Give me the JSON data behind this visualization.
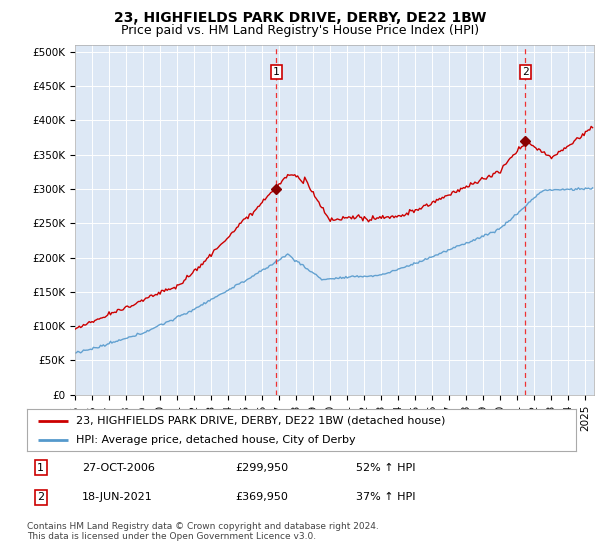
{
  "title": "23, HIGHFIELDS PARK DRIVE, DERBY, DE22 1BW",
  "subtitle": "Price paid vs. HM Land Registry's House Price Index (HPI)",
  "ylabel_ticks": [
    "£0",
    "£50K",
    "£100K",
    "£150K",
    "£200K",
    "£250K",
    "£300K",
    "£350K",
    "£400K",
    "£450K",
    "£500K"
  ],
  "ytick_values": [
    0,
    50000,
    100000,
    150000,
    200000,
    250000,
    300000,
    350000,
    400000,
    450000,
    500000
  ],
  "ylim": [
    0,
    510000
  ],
  "xlim_start": 1995.0,
  "xlim_end": 2025.5,
  "sale1_date": 2006.82,
  "sale1_price": 299950,
  "sale1_label": "1",
  "sale2_date": 2021.46,
  "sale2_price": 369950,
  "sale2_label": "2",
  "property_color": "#cc0000",
  "hpi_color": "#5599cc",
  "sale_marker_color": "#880000",
  "vline_color": "#ee3333",
  "grid_color": "#cccccc",
  "chart_bg_color": "#dde8f5",
  "background_color": "#ffffff",
  "legend_entry1": "23, HIGHFIELDS PARK DRIVE, DERBY, DE22 1BW (detached house)",
  "legend_entry2": "HPI: Average price, detached house, City of Derby",
  "table_row1_num": "1",
  "table_row1_date": "27-OCT-2006",
  "table_row1_price": "£299,950",
  "table_row1_pct": "52% ↑ HPI",
  "table_row2_num": "2",
  "table_row2_date": "18-JUN-2021",
  "table_row2_price": "£369,950",
  "table_row2_pct": "37% ↑ HPI",
  "footer": "Contains HM Land Registry data © Crown copyright and database right 2024.\nThis data is licensed under the Open Government Licence v3.0.",
  "title_fontsize": 10,
  "subtitle_fontsize": 9,
  "tick_fontsize": 7.5,
  "legend_fontsize": 8,
  "table_fontsize": 8,
  "footer_fontsize": 6.5
}
